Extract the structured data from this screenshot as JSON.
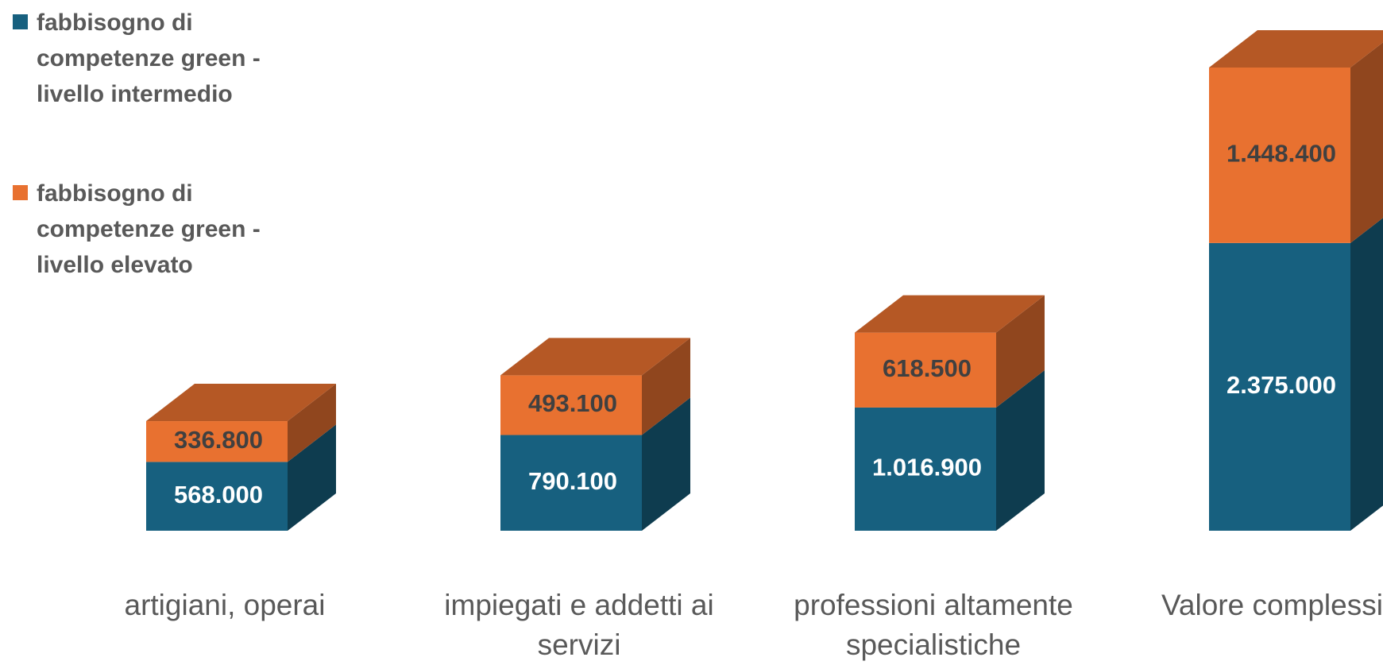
{
  "chart_data": {
    "type": "bar3d_stacked",
    "categories": [
      "artigiani, operai",
      "impiegati e addetti ai servizi",
      "professioni altamente specialistiche",
      "Valore complessivo"
    ],
    "series": [
      {
        "name": "fabbisogno di competenze green - livello intermedio",
        "color": "#17607f",
        "values": [
          568000,
          790100,
          1016900,
          2375000
        ],
        "value_labels": [
          "568.000",
          "790.100",
          "1.016.900",
          "2.375.000"
        ]
      },
      {
        "name": "fabbisogno di competenze green - livello elevato",
        "color": "#e87130",
        "values": [
          336800,
          493100,
          618500,
          1448400
        ],
        "value_labels": [
          "336.800",
          "493.100",
          "618.500",
          "1.448.400"
        ]
      }
    ],
    "legend": "top-left"
  }
}
